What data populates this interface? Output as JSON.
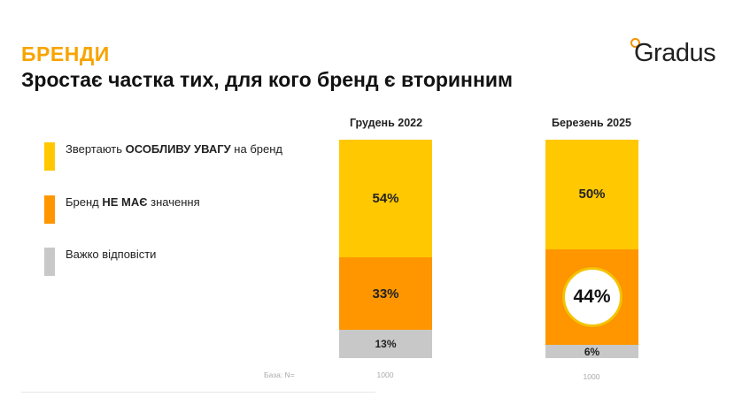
{
  "header": {
    "section_title": "БРЕНДИ",
    "main_title": "Зростає частка тих, для кого бренд є вторинним"
  },
  "logo": {
    "text": "Gradus"
  },
  "legend": {
    "items": [
      {
        "prefix": "Звертають ",
        "bold": "ОСОБЛИВУ УВАГУ",
        "suffix": " на бренд",
        "color": "#FFC800"
      },
      {
        "prefix": "Бренд ",
        "bold": "НЕ МАЄ",
        "suffix": " значення",
        "color": "#FF9600"
      },
      {
        "prefix": "Важко відповісти",
        "bold": "",
        "suffix": "",
        "color": "#C8C8C8"
      }
    ]
  },
  "base": {
    "label": "База: N="
  },
  "highlight": {
    "value": "44%"
  },
  "chart_data": {
    "type": "bar",
    "stacked": true,
    "normalized_100": true,
    "categories": [
      "Грудень 2022",
      "Березень 2025"
    ],
    "series": [
      {
        "name": "Звертають ОСОБЛИВУ УВАГУ на бренд",
        "color": "#FFC800",
        "values": [
          54,
          50
        ],
        "labels": [
          "54%",
          "50%"
        ]
      },
      {
        "name": "Бренд НЕ МАЄ значення",
        "color": "#FF9600",
        "values": [
          33,
          44
        ],
        "labels": [
          "33%",
          "44%"
        ]
      },
      {
        "name": "Важко відповісти",
        "color": "#C8C8C8",
        "values": [
          13,
          6
        ],
        "labels": [
          "13%",
          "6%"
        ]
      }
    ],
    "base_n": [
      "1000",
      "1000"
    ],
    "ylim": [
      0,
      100
    ],
    "legend_position": "left"
  }
}
